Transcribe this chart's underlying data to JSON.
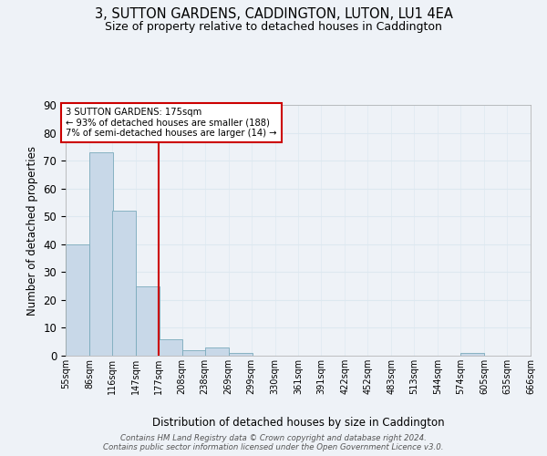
{
  "title1": "3, SUTTON GARDENS, CADDINGTON, LUTON, LU1 4EA",
  "title2": "Size of property relative to detached houses in Caddington",
  "xlabel": "Distribution of detached houses by size in Caddington",
  "ylabel": "Number of detached properties",
  "bins": [
    55,
    86,
    116,
    147,
    177,
    208,
    238,
    269,
    299,
    330,
    361,
    391,
    422,
    452,
    483,
    513,
    544,
    574,
    605,
    635,
    666
  ],
  "counts": [
    40,
    73,
    52,
    25,
    6,
    2,
    3,
    1,
    0,
    0,
    0,
    0,
    0,
    0,
    0,
    0,
    0,
    1,
    0,
    0
  ],
  "tick_labels": [
    "55sqm",
    "86sqm",
    "116sqm",
    "147sqm",
    "177sqm",
    "208sqm",
    "238sqm",
    "269sqm",
    "299sqm",
    "330sqm",
    "361sqm",
    "391sqm",
    "422sqm",
    "452sqm",
    "483sqm",
    "513sqm",
    "544sqm",
    "574sqm",
    "605sqm",
    "635sqm",
    "666sqm"
  ],
  "bar_color": "#c8d8e8",
  "bar_edge_color": "#7aaabb",
  "grid_color": "#dde8f0",
  "vline_x": 177,
  "vline_color": "#cc0000",
  "annotation_text": "3 SUTTON GARDENS: 175sqm\n← 93% of detached houses are smaller (188)\n7% of semi-detached houses are larger (14) →",
  "annotation_box_color": "#ffffff",
  "annotation_box_edge": "#cc0000",
  "ylim": [
    0,
    90
  ],
  "yticks": [
    0,
    10,
    20,
    30,
    40,
    50,
    60,
    70,
    80,
    90
  ],
  "footnote": "Contains HM Land Registry data © Crown copyright and database right 2024.\nContains public sector information licensed under the Open Government Licence v3.0.",
  "bg_color": "#eef2f7",
  "title1_fontsize": 10.5,
  "title2_fontsize": 9
}
